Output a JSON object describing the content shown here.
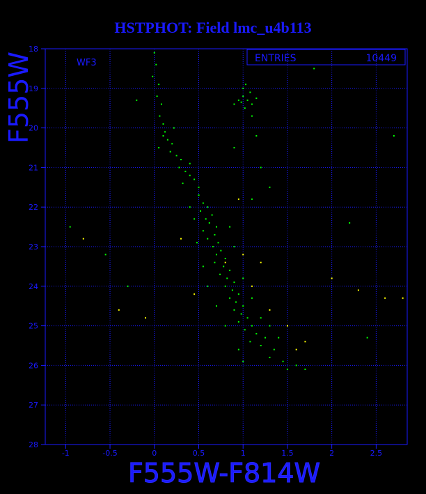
{
  "chart_data": {
    "type": "scatter",
    "title": "HSTPHOT: Field lmc_u4b113",
    "x_label": "F555W-F814W",
    "y_label": "F555W",
    "annotation": "WF3",
    "stats": {
      "label": "ENTRIES",
      "value": 10449
    },
    "xlim": [
      -1.23,
      2.85
    ],
    "ylim": [
      28,
      18
    ],
    "xticks": [
      -1,
      -0.5,
      0,
      0.5,
      1,
      1.5,
      2,
      2.5
    ],
    "yticks": [
      18,
      19,
      20,
      21,
      22,
      23,
      24,
      25,
      26,
      27,
      28
    ],
    "grid": true,
    "series": [
      {
        "color": "#00ff00",
        "x": [
          0.0,
          0.02,
          -0.02,
          0.05,
          0.03,
          0.08,
          0.06,
          0.1,
          0.12,
          0.15,
          0.2,
          0.18,
          0.25,
          0.3,
          0.28,
          0.35,
          0.4,
          0.32,
          0.45,
          0.1,
          0.22,
          0.05,
          0.4,
          0.5,
          0.95,
          1.0,
          1.05,
          1.1,
          1.0,
          0.9,
          1.08,
          1.02,
          0.98,
          1.15,
          1.03,
          1.1,
          1.15,
          1.2,
          1.3,
          1.1,
          0.9,
          0.5,
          0.55,
          0.6,
          0.52,
          0.65,
          0.58,
          0.62,
          0.7,
          0.55,
          0.68,
          0.6,
          0.72,
          0.66,
          0.75,
          0.7,
          0.8,
          0.68,
          0.78,
          0.85,
          0.74,
          0.82,
          0.9,
          0.8,
          0.88,
          0.95,
          0.85,
          0.92,
          1.0,
          0.9,
          0.98,
          1.05,
          0.95,
          1.1,
          1.02,
          1.15,
          1.25,
          1.08,
          1.2,
          1.35,
          1.3,
          1.45,
          1.5,
          1.6,
          1.7,
          0.45,
          0.48,
          0.55,
          0.6,
          0.7,
          0.8,
          0.4,
          0.85,
          0.9,
          1.0,
          1.1,
          1.2,
          1.3,
          1.4,
          0.95,
          1.0,
          -0.55,
          -0.3,
          2.7,
          2.4,
          -0.2,
          2.2,
          1.8,
          -0.95
        ],
        "y": [
          18.1,
          18.4,
          18.7,
          18.9,
          19.2,
          19.4,
          19.7,
          19.9,
          20.1,
          20.3,
          20.4,
          20.6,
          20.7,
          20.8,
          21.0,
          21.1,
          21.2,
          21.4,
          21.3,
          20.2,
          20.0,
          20.5,
          20.9,
          21.5,
          19.3,
          19.2,
          19.3,
          19.4,
          19.0,
          19.4,
          19.1,
          19.5,
          19.35,
          19.25,
          18.9,
          19.7,
          20.2,
          21.0,
          21.5,
          21.8,
          20.5,
          21.7,
          21.9,
          22.0,
          22.1,
          22.2,
          22.3,
          22.4,
          22.5,
          22.6,
          22.7,
          22.8,
          22.9,
          23.0,
          23.1,
          23.2,
          23.3,
          23.4,
          23.5,
          23.6,
          23.7,
          23.8,
          23.9,
          24.0,
          24.1,
          24.2,
          24.3,
          24.4,
          24.5,
          24.6,
          24.7,
          24.8,
          24.9,
          25.0,
          25.1,
          25.2,
          25.3,
          25.4,
          25.5,
          25.6,
          25.8,
          25.9,
          26.1,
          26.0,
          26.1,
          22.3,
          22.9,
          23.5,
          24.0,
          24.5,
          25.0,
          22.0,
          22.5,
          23.0,
          23.8,
          24.3,
          24.8,
          25.0,
          25.3,
          25.6,
          25.9,
          23.2,
          24.0,
          20.2,
          25.3,
          19.3,
          22.4,
          18.5,
          22.5
        ]
      },
      {
        "color": "#ffff00",
        "x": [
          0.8,
          1.0,
          1.1,
          1.3,
          1.5,
          1.7,
          2.0,
          2.3,
          2.6,
          -0.4,
          -0.1,
          0.3,
          0.95,
          1.6,
          2.8,
          -0.8,
          1.2,
          0.45
        ],
        "y": [
          23.4,
          23.2,
          24.0,
          24.6,
          25.0,
          25.4,
          23.8,
          24.1,
          24.3,
          24.6,
          24.8,
          22.8,
          21.8,
          25.6,
          24.3,
          22.8,
          23.4,
          24.2
        ]
      }
    ]
  }
}
